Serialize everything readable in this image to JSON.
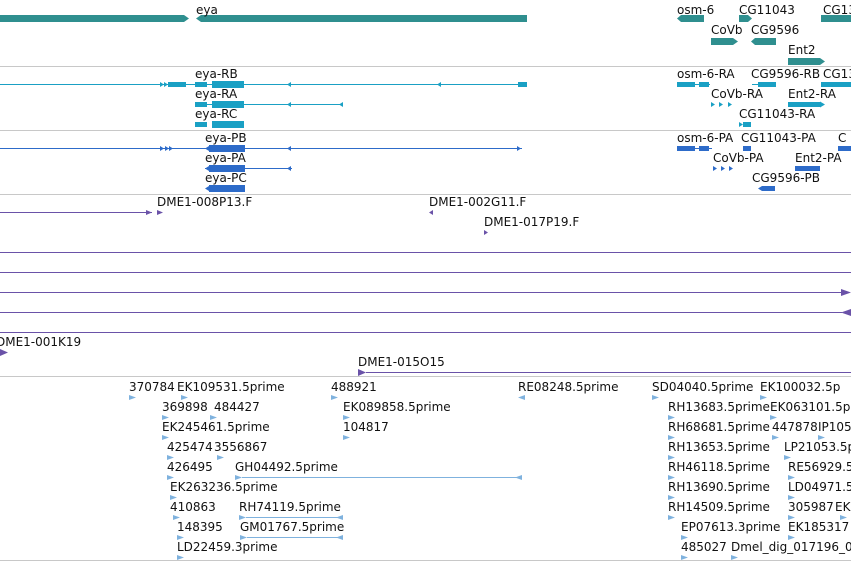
{
  "colors": {
    "gene": "#2f8f8f",
    "mrna": "#1aa0c4",
    "protein": "#2d6bc9",
    "clone": "#6a52a8",
    "est": "#7fb2de",
    "separator": "#c8c8c8"
  },
  "tracks": {
    "genes": {
      "labels": [
        {
          "text": "eya"
        },
        {
          "text": "osm-6"
        },
        {
          "text": "CG11043"
        },
        {
          "text": "CG13"
        },
        {
          "text": "CoVb"
        },
        {
          "text": "CG9596"
        },
        {
          "text": "Ent2"
        }
      ]
    },
    "transcripts": {
      "labels": [
        {
          "text": "eya-RB"
        },
        {
          "text": "eya-RA"
        },
        {
          "text": "eya-RC"
        },
        {
          "text": "osm-6-RA"
        },
        {
          "text": "CG9596-RB"
        },
        {
          "text": "CG13"
        },
        {
          "text": "CoVb-RA"
        },
        {
          "text": "Ent2-RA"
        },
        {
          "text": "CG11043-RA"
        }
      ]
    },
    "proteins": {
      "labels": [
        {
          "text": "eya-PB"
        },
        {
          "text": "eya-PA"
        },
        {
          "text": "eya-PC"
        },
        {
          "text": "osm-6-PA"
        },
        {
          "text": "CG11043-PA"
        },
        {
          "text": "C"
        },
        {
          "text": "CoVb-PA"
        },
        {
          "text": "Ent2-PA"
        },
        {
          "text": "CG9596-PB"
        }
      ]
    },
    "clones": {
      "labels": [
        {
          "text": "DME1-008P13.F"
        },
        {
          "text": "DME1-002G11.F"
        },
        {
          "text": "DME1-017P19.F"
        },
        {
          "text": "DME1-001K19"
        },
        {
          "text": "DME1-015O15"
        }
      ]
    },
    "ests": {
      "labels": [
        {
          "text": "370784"
        },
        {
          "text": "EK109531.5prime"
        },
        {
          "text": "488921"
        },
        {
          "text": "RE08248.5prime"
        },
        {
          "text": "SD04040.5prime"
        },
        {
          "text": "EK100032.5p"
        },
        {
          "text": "369898"
        },
        {
          "text": "484427"
        },
        {
          "text": "EK089858.5prime"
        },
        {
          "text": "RH13683.5prime"
        },
        {
          "text": "EK063101.5p"
        },
        {
          "text": "EK245461.5prime"
        },
        {
          "text": "104817"
        },
        {
          "text": "RH68681.5prime"
        },
        {
          "text": "447878"
        },
        {
          "text": "IP105"
        },
        {
          "text": "425474"
        },
        {
          "text": "3556867"
        },
        {
          "text": "RH13653.5prime"
        },
        {
          "text": "LP21053.5p"
        },
        {
          "text": "426495"
        },
        {
          "text": "GH04492.5prime"
        },
        {
          "text": "RH46118.5prime"
        },
        {
          "text": "RE56929.5"
        },
        {
          "text": "EK263236.5prime"
        },
        {
          "text": "RH13690.5prime"
        },
        {
          "text": "LD04971.5"
        },
        {
          "text": "410863"
        },
        {
          "text": "RH74119.5prime"
        },
        {
          "text": "RH14509.5prime"
        },
        {
          "text": "305987"
        },
        {
          "text": "EK"
        },
        {
          "text": "148395"
        },
        {
          "text": "GM01767.5prime"
        },
        {
          "text": "EP07613.3prime"
        },
        {
          "text": "EK185317"
        },
        {
          "text": "LD22459.3prime"
        },
        {
          "text": "485027"
        },
        {
          "text": "Dmel_dig_017196_0"
        }
      ]
    }
  }
}
